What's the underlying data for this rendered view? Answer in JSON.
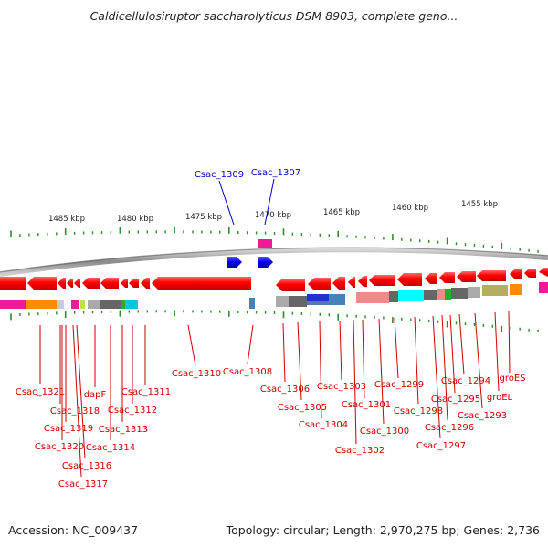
{
  "title": "Caldicellulosiruptor saccharolyticus DSM 8903, complete geno...",
  "footer": {
    "accession": "Accession: NC_009437",
    "summary": "Topology: circular; Length: 2,970,275 bp; Genes: 2,736"
  },
  "ruler": {
    "labels": [
      "1485 kbp",
      "1480 kbp",
      "1475 kbp",
      "1470 kbp",
      "1465 kbp",
      "1460 kbp",
      "1455 kbp"
    ]
  },
  "genes": {
    "blue_labels": [
      "Csac_1309",
      "Csac_1307"
    ],
    "red_labels": [
      "Csac_1321",
      "Csac_1318",
      "Csac_1319",
      "Csac_1320",
      "Csac_1316",
      "Csac_1317",
      "dapF",
      "Csac_1314",
      "Csac_1313",
      "Csac_1312",
      "Csac_1311",
      "Csac_1310",
      "Csac_1308",
      "Csac_1306",
      "Csac_1305",
      "Csac_1304",
      "Csac_1303",
      "Csac_1302",
      "Csac_1301",
      "Csac_1300",
      "Csac_1299",
      "Csac_1298",
      "Csac_1297",
      "Csac_1296",
      "Csac_1295",
      "Csac_1294",
      "Csac_1293",
      "groEL",
      "groES"
    ]
  },
  "colors": {
    "gene_forward": "#ff0000",
    "gene_reverse": "#ff0000",
    "gene_other_strand": "#0000ee",
    "tick": "#2e8b2e",
    "backbone": "#8c8c8c",
    "label_red": "#cc0000",
    "label_blue": "#0000cc"
  }
}
